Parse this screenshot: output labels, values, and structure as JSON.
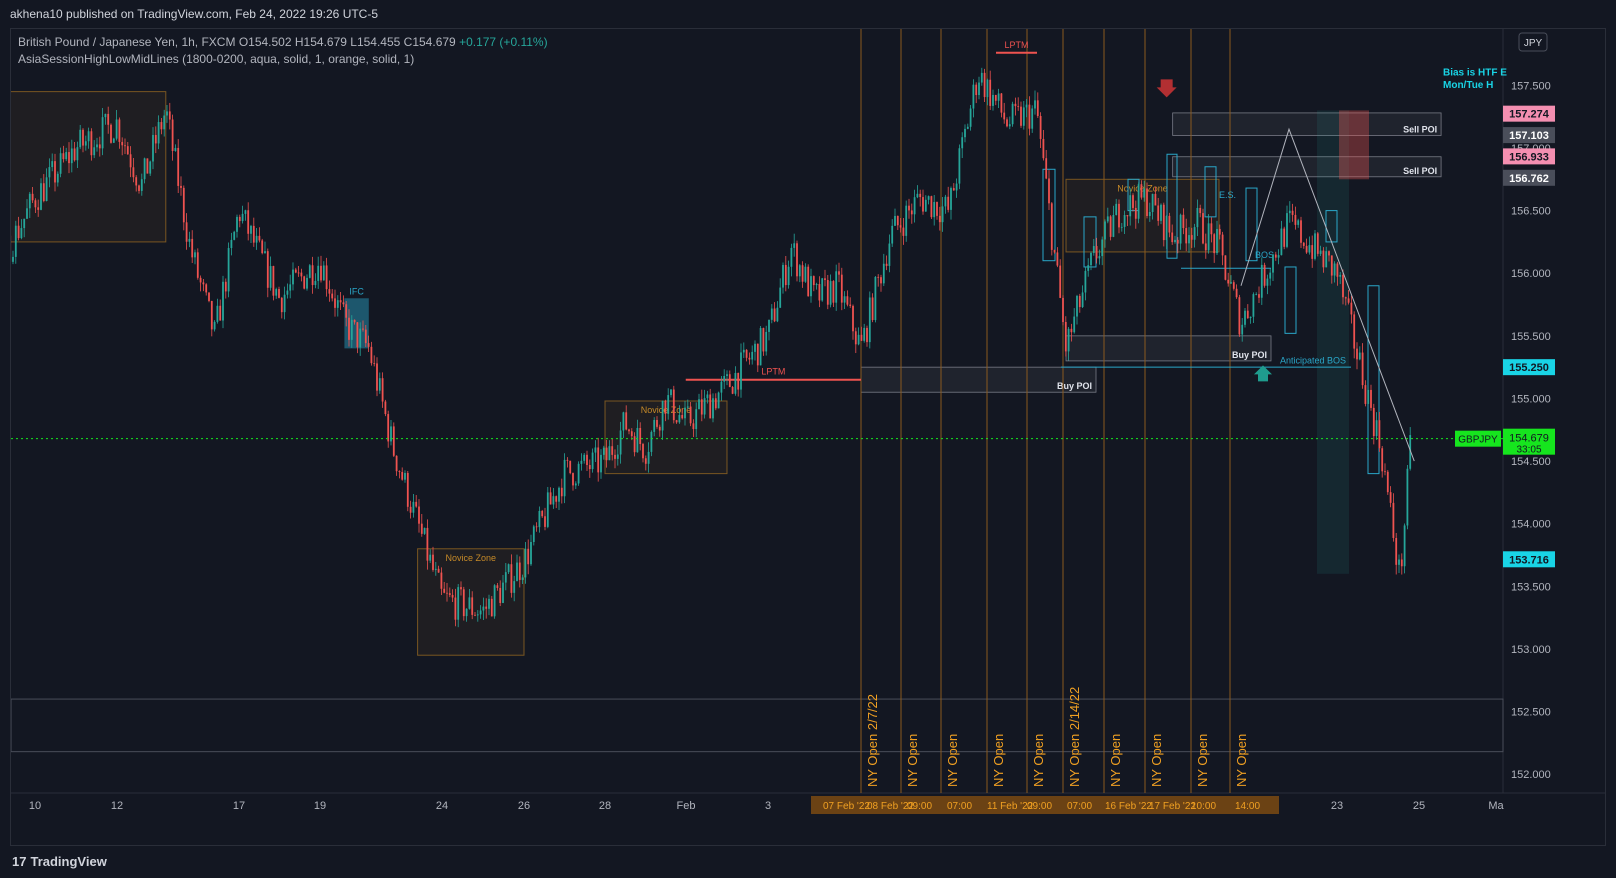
{
  "header": {
    "published": "akhena10 published on TradingView.com, Feb 24, 2022 19:26 UTC-5"
  },
  "legend": {
    "symbol": "British Pound / Japanese Yen, 1h, FXCM",
    "o": "O154.502",
    "h": "H154.679",
    "l": "L154.455",
    "c": "C154.679",
    "chg": "+0.177 (+0.11%)",
    "indicator": "AsiaSessionHighLowMidLines (1800-0200, aqua, solid, 1, orange, solid, 1)"
  },
  "footer": {
    "brand": "TradingView",
    "logo": "17"
  },
  "colors": {
    "background": "#131722",
    "up": "#26a69a",
    "down": "#ef5350",
    "orange": "#f0a022",
    "aqua": "#2aa7c9",
    "current": "#16e51e"
  },
  "chart_data": {
    "type": "candlestick",
    "symbol": "GBPJPY",
    "currency": "JPY",
    "interval": "1h",
    "ylim": [
      151.85,
      157.95
    ],
    "y_ticks": [
      "157.500",
      "157.000",
      "156.500",
      "156.000",
      "155.500",
      "155.000",
      "154.500",
      "154.000",
      "153.500",
      "153.000",
      "152.500",
      "152.000"
    ],
    "x_ticks": [
      "10",
      "12",
      "17",
      "19",
      "24",
      "26",
      "28",
      "Feb",
      "3",
      "23",
      "25",
      "Ma"
    ],
    "x_range": [
      "Jan 7",
      "Mar 1"
    ],
    "price_labels": [
      {
        "value": "157.274",
        "price": 157.274,
        "color": "#f48fb1",
        "text": "#131722"
      },
      {
        "value": "157.103",
        "price": 157.103,
        "color": "#4a4e5a",
        "text": "#ffffff"
      },
      {
        "value": "156.933",
        "price": 156.933,
        "color": "#f48fb1",
        "text": "#131722"
      },
      {
        "value": "156.762",
        "price": 156.762,
        "color": "#4a4e5a",
        "text": "#ffffff"
      },
      {
        "value": "155.250",
        "price": 155.25,
        "color": "#19d4e6",
        "text": "#131722"
      },
      {
        "value": "153.716",
        "price": 153.716,
        "color": "#19d4e6",
        "text": "#131722"
      }
    ],
    "current_price": {
      "value": "154.679",
      "countdown": "33:05",
      "tag": "GBPJPY",
      "price": 154.679
    },
    "path_points": [
      {
        "t": "Jan 7",
        "p": 156.3
      },
      {
        "t": "Jan 8",
        "p": 156.9
      },
      {
        "t": "Jan 9",
        "p": 156.0
      },
      {
        "t": "Jan 10",
        "p": 156.6
      },
      {
        "t": "Jan 11",
        "p": 157.0
      },
      {
        "t": "Jan 12",
        "p": 157.2
      },
      {
        "t": "Jan 13",
        "p": 156.7
      },
      {
        "t": "Jan 14",
        "p": 157.3
      },
      {
        "t": "Jan 15",
        "p": 156.2
      },
      {
        "t": "Jan 16",
        "p": 155.5
      },
      {
        "t": "Jan 17",
        "p": 156.5
      },
      {
        "t": "Jan 18",
        "p": 155.8
      },
      {
        "t": "Jan 19",
        "p": 156.1
      },
      {
        "t": "Jan 20",
        "p": 155.6
      },
      {
        "t": "Jan 21",
        "p": 155.4
      },
      {
        "t": "Jan 22",
        "p": 154.6
      },
      {
        "t": "Jan 23",
        "p": 154.0
      },
      {
        "t": "Jan 24",
        "p": 153.4
      },
      {
        "t": "Jan 25",
        "p": 153.3
      },
      {
        "t": "Jan 26",
        "p": 153.7
      },
      {
        "t": "Jan 27",
        "p": 154.4
      },
      {
        "t": "Jan 28",
        "p": 154.5
      },
      {
        "t": "Jan 29",
        "p": 154.8
      },
      {
        "t": "Jan 30",
        "p": 154.6
      },
      {
        "t": "Jan 31",
        "p": 155.0
      },
      {
        "t": "Feb 1",
        "p": 154.8
      },
      {
        "t": "Feb 2",
        "p": 155.1
      },
      {
        "t": "Feb 3",
        "p": 155.5
      },
      {
        "t": "Feb 4",
        "p": 156.2
      },
      {
        "t": "Feb 5",
        "p": 155.8
      },
      {
        "t": "Feb 6",
        "p": 155.9
      },
      {
        "t": "Feb 7",
        "p": 155.4
      },
      {
        "t": "Feb 8",
        "p": 156.3
      },
      {
        "t": "Feb 9",
        "p": 156.6
      },
      {
        "t": "Feb 10",
        "p": 156.5
      },
      {
        "t": "Feb 11",
        "p": 157.6
      },
      {
        "t": "Feb 12",
        "p": 157.2
      },
      {
        "t": "Feb 13",
        "p": 157.3
      },
      {
        "t": "Feb 14",
        "p": 155.4
      },
      {
        "t": "Feb 15",
        "p": 156.1
      },
      {
        "t": "Feb 16",
        "p": 156.5
      },
      {
        "t": "Feb 17",
        "p": 156.6
      },
      {
        "t": "Feb 18",
        "p": 156.3
      },
      {
        "t": "Feb 19",
        "p": 156.4
      },
      {
        "t": "Feb 20",
        "p": 156.2
      },
      {
        "t": "Feb 21",
        "p": 155.6
      },
      {
        "t": "Feb 22",
        "p": 156.4
      },
      {
        "t": "Feb 23",
        "p": 156.0
      },
      {
        "t": "Feb 24 00:00",
        "p": 154.6
      },
      {
        "t": "Feb 24 12:00",
        "p": 153.55
      },
      {
        "t": "Feb 24 19:00",
        "p": 154.68
      }
    ],
    "ny_open_lines": {
      "labels": [
        "NY Open 2/7/22",
        "NY Open",
        "NY Open",
        "NY Open",
        "NY Open",
        "NY Open 2/14/22",
        "NY Open",
        "NY Open",
        "NY Open",
        "NY Open"
      ],
      "dates": [
        "Feb 7",
        "Feb 8",
        "Feb 9",
        "Feb 10",
        "Feb 11",
        "Feb 14",
        "Feb 15",
        "Feb 16",
        "Feb 17",
        "Feb 18"
      ]
    },
    "date_axis_labels": [
      "07 Feb '22",
      "08 Feb '22",
      "09:00",
      "07:00",
      "11 Feb '22",
      "09:00",
      "07:00",
      "16 Feb '22",
      "17 Feb '22",
      "10:00",
      "14:00"
    ],
    "zones": [
      {
        "label": "",
        "from": "Jan 7",
        "to": "Jan 14",
        "top": 157.45,
        "bottom": 156.25,
        "color": "#f0a022"
      },
      {
        "label": "Novice Zone",
        "from": "Jan 23",
        "to": "Jan 26",
        "top": 153.8,
        "bottom": 152.95,
        "color": "#f0a022"
      },
      {
        "label": "Novice Zone",
        "from": "Jan 28",
        "to": "Feb 2",
        "top": 154.98,
        "bottom": 154.4,
        "color": "#f0a022"
      },
      {
        "label": "Novice Zone",
        "from": "Feb 14",
        "to": "Feb 20",
        "top": 156.75,
        "bottom": 156.17,
        "color": "#f0a022"
      },
      {
        "label": "IFC",
        "from": "Jan 20",
        "to": "Jan 21",
        "top": 155.8,
        "bottom": 155.4,
        "color": "#2aa7c9"
      }
    ],
    "levels": [
      {
        "label": "LPTM",
        "price": 155.15,
        "from": "Jan 31",
        "to": "Feb 7",
        "color": "#ef5350"
      },
      {
        "label": "LPTM",
        "price": 157.76,
        "from": "Feb 11",
        "to": "Feb 12",
        "color": "#ef5350"
      }
    ],
    "poi_boxes": [
      {
        "label": "Sell POI",
        "from": "Feb 18",
        "to": "Feb 24 19:00",
        "top": 157.28,
        "bottom": 157.1
      },
      {
        "label": "Sell POI",
        "from": "Feb 18",
        "to": "Feb 24 19:00",
        "top": 156.93,
        "bottom": 156.77
      },
      {
        "label": "Buy POI",
        "from": "Feb 7",
        "to": "Feb 14",
        "top": 155.25,
        "bottom": 155.05
      },
      {
        "label": "Buy POI",
        "from": "Feb 14",
        "to": "Feb 21",
        "top": 155.5,
        "bottom": 155.3
      }
    ],
    "annotations": [
      {
        "text": "E.S.",
        "t": "Feb 18",
        "p": 156.6,
        "color": "#2aa7c9"
      },
      {
        "text": "BOS",
        "t": "Feb 19",
        "p": 156.12,
        "color": "#2aa7c9"
      },
      {
        "text": "Anticipated BOS",
        "t": "Feb 21",
        "p": 155.28,
        "color": "#2aa7c9"
      },
      {
        "text": "Bias is HTF E",
        "t": "Feb 26",
        "p": 157.58,
        "color": "#19d4e6"
      },
      {
        "text": "Mon/Tue H",
        "t": "Feb 26",
        "p": 157.48,
        "color": "#19d4e6"
      }
    ],
    "projection": [
      {
        "t": "Feb 21",
        "p": 155.9
      },
      {
        "t": "Feb 22",
        "p": 157.15
      },
      {
        "t": "Feb 24 21:00",
        "p": 154.5
      }
    ],
    "down_arrow": {
      "t": "Feb 18",
      "p": 157.5,
      "color": "#b22f32"
    },
    "up_arrow": {
      "t": "Feb 21",
      "p": 155.2,
      "color": "#1f9c8e"
    }
  }
}
